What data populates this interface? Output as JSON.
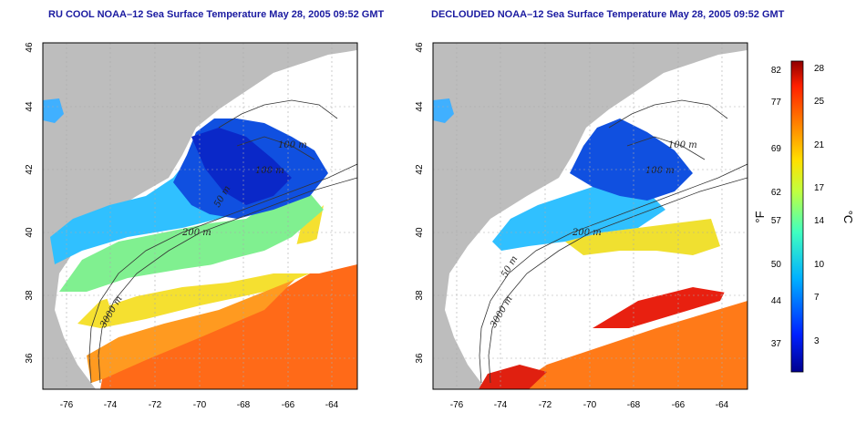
{
  "left_map": {
    "title": "RU COOL NOAA–12 Sea Surface Temperature May 28, 2005 09:52 GMT",
    "contour_labels": [
      "100 m",
      "100 m",
      "50 m",
      "200 m",
      "3000 m"
    ]
  },
  "right_map": {
    "title": "DECLOUDED NOAA–12 Sea Surface Temperature May 28, 2005 09:52 GMT",
    "contour_labels": [
      "100 m",
      "100 m",
      "50 m",
      "200 m",
      "3000 m"
    ]
  },
  "axes": {
    "lat_ticks": [
      "46",
      "44",
      "42",
      "40",
      "38",
      "36"
    ],
    "lon_ticks": [
      "-76",
      "-74",
      "-72",
      "-70",
      "-68",
      "-66",
      "-64"
    ]
  },
  "colorbar": {
    "f_label": "°F",
    "c_label": "°C",
    "f_ticks": [
      "82",
      "77",
      "69",
      "62",
      "57",
      "50",
      "44",
      "37"
    ],
    "c_ticks": [
      "28",
      "25",
      "21",
      "17",
      "14",
      "10",
      "7",
      "3"
    ]
  },
  "colors": {
    "land": "#bdbdbd",
    "cloud": "#ffffff",
    "title": "#1a1aa0"
  }
}
